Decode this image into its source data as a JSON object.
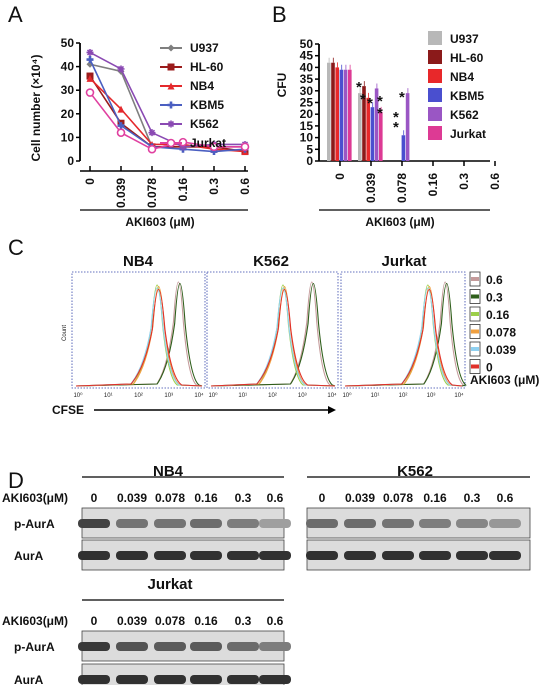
{
  "panels": {
    "a": "A",
    "b": "B",
    "c": "C",
    "d": "D"
  },
  "chart_data": [
    {
      "type": "line",
      "ylabel": "Cell number (×10⁴)",
      "xlabel": "AKI603 (μM)",
      "categories": [
        "0",
        "0.039",
        "0.078",
        "0.16",
        "0.3",
        "0.6"
      ],
      "ylim": [
        0,
        50
      ],
      "yticks": [
        0,
        10,
        20,
        30,
        40,
        50
      ],
      "legend_position": "top-right",
      "series": [
        {
          "name": "U937",
          "color": "#7f7f7f",
          "marker": "diamond",
          "values": [
            41,
            38,
            6,
            6,
            6,
            6
          ]
        },
        {
          "name": "HL-60",
          "color": "#9b1c1c",
          "marker": "square",
          "values": [
            36,
            16,
            6,
            6,
            6,
            4
          ]
        },
        {
          "name": "NB4",
          "color": "#e4292c",
          "marker": "triangle",
          "values": [
            35,
            22,
            7,
            7,
            5,
            4
          ]
        },
        {
          "name": "KBM5",
          "color": "#4b5fc1",
          "marker": "cross",
          "values": [
            43,
            15,
            6,
            5,
            4,
            5
          ]
        },
        {
          "name": "K562",
          "color": "#8a4ab3",
          "marker": "star",
          "values": [
            46,
            39,
            12,
            6,
            7,
            7
          ]
        },
        {
          "name": "Jurkat",
          "color": "#e040a0",
          "marker": "circle",
          "values": [
            29,
            12,
            5,
            8,
            6,
            6
          ]
        }
      ]
    },
    {
      "type": "bar",
      "ylabel": "CFU",
      "xlabel": "AKI603 (μM)",
      "categories": [
        "0",
        "0.039",
        "0.078",
        "0.16",
        "0.3",
        "0.6"
      ],
      "ylim": [
        0,
        50
      ],
      "yticks": [
        0,
        5,
        10,
        15,
        20,
        25,
        30,
        35,
        40,
        45,
        50
      ],
      "legend_position": "right",
      "series": [
        {
          "name": "U937",
          "color": "#b8b8b8",
          "values": [
            42,
            29,
            0,
            0,
            0,
            0
          ]
        },
        {
          "name": "HL-60",
          "color": "#8b1a1a",
          "values": [
            42,
            32,
            0,
            0,
            0,
            0
          ]
        },
        {
          "name": "NB4",
          "color": "#e8282a",
          "values": [
            40,
            27,
            0,
            0,
            0,
            0
          ]
        },
        {
          "name": "KBM5",
          "color": "#4a4fcf",
          "values": [
            39,
            23,
            11,
            0,
            0,
            0
          ]
        },
        {
          "name": "K562",
          "color": "#9a56c4",
          "values": [
            39,
            31,
            29,
            0,
            0,
            0
          ]
        },
        {
          "name": "Jurkat",
          "color": "#dd3a94",
          "values": [
            39,
            21,
            0,
            0,
            0,
            0
          ]
        }
      ],
      "annotations": [
        "*",
        "*",
        "*",
        "*",
        "*",
        "*",
        "*",
        "*"
      ]
    }
  ],
  "flow": {
    "titles": [
      "NB4",
      "K562",
      "Jurkat"
    ],
    "ylabel": "Count",
    "xlabel": "CFSE",
    "xtick_labels": [
      "10⁰",
      "10¹",
      "10²",
      "10³",
      "10⁴"
    ],
    "legend_title": "AKI603 (μM)",
    "legend": [
      {
        "label": "0.6",
        "color": "#c49a9a"
      },
      {
        "label": "0.3",
        "color": "#2e5e1a"
      },
      {
        "label": "0.16",
        "color": "#9ccf4a"
      },
      {
        "label": "0.078",
        "color": "#f0a040"
      },
      {
        "label": "0.039",
        "color": "#8fd0f0"
      },
      {
        "label": "0",
        "color": "#e0302a"
      }
    ]
  },
  "western": {
    "row_label": "AKI603(μM)",
    "doses": [
      "0",
      "0.039",
      "0.078",
      "0.16",
      "0.3",
      "0.6"
    ],
    "band_labels": [
      "p-AurA",
      "AurA"
    ],
    "blots": [
      {
        "title": "NB4",
        "p_aura_intensity": [
          0.85,
          0.55,
          0.55,
          0.6,
          0.5,
          0.3
        ],
        "aura_intensity": [
          0.95,
          0.95,
          0.95,
          0.95,
          0.95,
          0.95
        ]
      },
      {
        "title": "K562",
        "p_aura_intensity": [
          0.6,
          0.6,
          0.55,
          0.5,
          0.45,
          0.35
        ],
        "aura_intensity": [
          0.95,
          0.95,
          0.95,
          0.95,
          0.95,
          0.95
        ]
      },
      {
        "title": "Jurkat",
        "p_aura_intensity": [
          0.9,
          0.75,
          0.7,
          0.7,
          0.6,
          0.5
        ],
        "aura_intensity": [
          0.95,
          0.95,
          0.95,
          0.95,
          0.95,
          0.95
        ]
      }
    ]
  }
}
